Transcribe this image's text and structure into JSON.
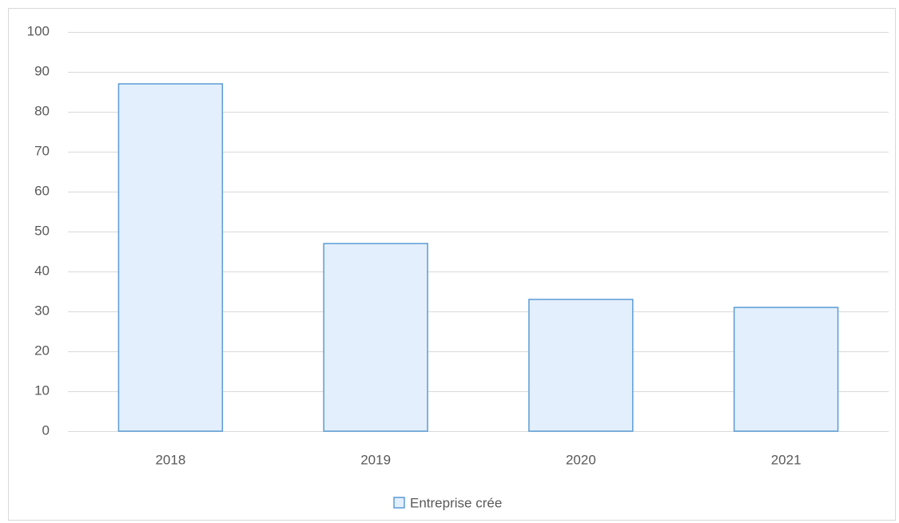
{
  "chart_data": {
    "type": "bar",
    "categories": [
      "2018",
      "2019",
      "2020",
      "2021"
    ],
    "series": [
      {
        "name": "Entreprise crée",
        "color": "#5b9bd5",
        "values": [
          87,
          47,
          33,
          31
        ]
      }
    ],
    "ylim": [
      0,
      100
    ],
    "yticks": [
      0,
      10,
      20,
      30,
      40,
      50,
      60,
      70,
      80,
      90,
      100
    ],
    "grid": true,
    "legend": "bottom"
  }
}
